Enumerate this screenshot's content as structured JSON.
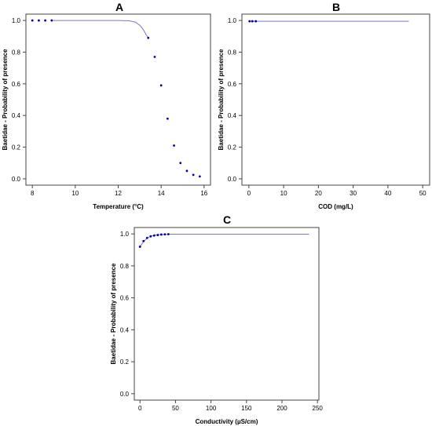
{
  "chart_data": [
    {
      "type": "line",
      "panel_label": "A",
      "title": "",
      "xlabel": "Temperature (°C)",
      "ylabel": "Baetidae - Probability of presence",
      "xlim": [
        7.7,
        16.3
      ],
      "ylim": [
        -0.04,
        1.04
      ],
      "xticks": [
        8,
        10,
        12,
        14,
        16
      ],
      "yticks": [
        0.0,
        0.2,
        0.4,
        0.6,
        0.8,
        1.0
      ],
      "tick_labels_x": [
        "8",
        "10",
        "12",
        "14",
        "16"
      ],
      "tick_labels_y": [
        "0.0",
        "0.2",
        "0.4",
        "0.6",
        "0.8",
        "1.0"
      ],
      "grid": false,
      "series": [
        {
          "kind": "fitted-line",
          "color": "#7777cc",
          "x": [
            8.9,
            10.0,
            11.0,
            12.0,
            12.5,
            12.8,
            13.0,
            13.1,
            13.2,
            13.3,
            13.4
          ],
          "y": [
            1.0,
            1.0,
            1.0,
            1.0,
            0.998,
            0.99,
            0.97,
            0.955,
            0.935,
            0.91,
            0.89
          ]
        },
        {
          "kind": "points",
          "color": "#0000aa",
          "x": [
            8.0,
            8.3,
            8.6,
            8.9,
            13.4,
            13.7,
            14.0,
            14.3,
            14.6,
            14.9,
            15.2,
            15.5,
            15.8
          ],
          "y": [
            1.0,
            1.0,
            1.0,
            1.0,
            0.89,
            0.77,
            0.59,
            0.38,
            0.21,
            0.1,
            0.05,
            0.025,
            0.015
          ]
        }
      ]
    },
    {
      "type": "line",
      "panel_label": "B",
      "title": "",
      "xlabel": "COD (mg/L)",
      "ylabel": "Baetidae - Probability of presence",
      "xlim": [
        -2,
        52
      ],
      "ylim": [
        -0.04,
        1.04
      ],
      "xticks": [
        0,
        10,
        20,
        30,
        40,
        50
      ],
      "yticks": [
        0.0,
        0.2,
        0.4,
        0.6,
        0.8,
        1.0
      ],
      "tick_labels_x": [
        "0",
        "10",
        "20",
        "30",
        "40",
        "50"
      ],
      "tick_labels_y": [
        "0.0",
        "0.2",
        "0.4",
        "0.6",
        "0.8",
        "1.0"
      ],
      "grid": false,
      "series": [
        {
          "kind": "fitted-line",
          "color": "#7777cc",
          "x": [
            0,
            46
          ],
          "y": [
            0.995,
            0.995
          ]
        },
        {
          "kind": "points",
          "color": "#0000aa",
          "x": [
            0.2,
            1.0,
            2.0
          ],
          "y": [
            0.995,
            0.995,
            0.995
          ]
        }
      ]
    },
    {
      "type": "line",
      "panel_label": "C",
      "title": "",
      "xlabel": "Conductivity (µS/cm)",
      "ylabel": "Baetidae - Probability of presence",
      "xlim": [
        -8,
        252
      ],
      "ylim": [
        -0.04,
        1.04
      ],
      "xticks": [
        0,
        50,
        100,
        150,
        200,
        250
      ],
      "yticks": [
        0.0,
        0.2,
        0.4,
        0.6,
        0.8,
        1.0
      ],
      "tick_labels_x": [
        "0",
        "50",
        "100",
        "150",
        "200",
        "250"
      ],
      "tick_labels_y": [
        "0.0",
        "0.2",
        "0.4",
        "0.6",
        "0.8",
        "1.0"
      ],
      "grid": false,
      "series": [
        {
          "kind": "fitted-line",
          "color": "#7777cc",
          "x": [
            0,
            4,
            8,
            12,
            16,
            20,
            25,
            30,
            35,
            40,
            60,
            100,
            150,
            200,
            238
          ],
          "y": [
            0.92,
            0.945,
            0.965,
            0.978,
            0.986,
            0.991,
            0.994,
            0.996,
            0.997,
            0.998,
            0.998,
            0.998,
            0.998,
            0.998,
            0.998
          ]
        },
        {
          "kind": "points",
          "color": "#0000aa",
          "x": [
            0,
            5,
            10,
            15,
            20,
            25,
            30,
            35,
            40
          ],
          "y": [
            0.92,
            0.955,
            0.975,
            0.985,
            0.99,
            0.993,
            0.996,
            0.997,
            0.998
          ]
        }
      ]
    }
  ]
}
